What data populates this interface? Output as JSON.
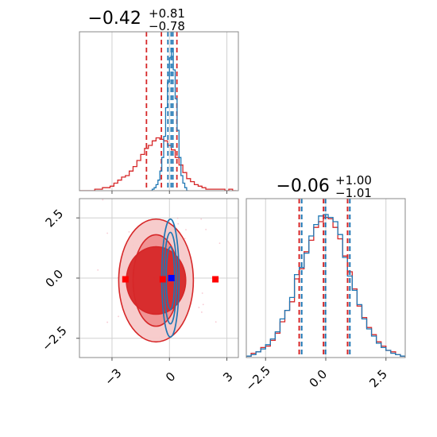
{
  "chart_data": [
    {
      "type": "histogram",
      "panel": "marginal-param-1",
      "title": {
        "median": "−0.42",
        "plus": "+0.81",
        "minus": "−0.78"
      },
      "xlim": [
        -4.7,
        3.6
      ],
      "xticks": [
        -3,
        0,
        3
      ],
      "tick_labels_shown": false,
      "grid": true,
      "series": [
        {
          "color": "#d62728",
          "bin_centers": [
            -4.6,
            -4.4,
            -4.2,
            -4.0,
            -3.8,
            -3.6,
            -3.4,
            -3.2,
            -3.0,
            -2.8,
            -2.6,
            -2.4,
            -2.2,
            -2.0,
            -1.8,
            -1.6,
            -1.4,
            -1.2,
            -1.0,
            -0.8,
            -0.6,
            -0.4,
            -0.2,
            0.0,
            0.2,
            0.4,
            0.6,
            0.8,
            1.0,
            1.2,
            1.4,
            1.6,
            1.8,
            2.0,
            2.2,
            2.4,
            2.6,
            2.8,
            3.0,
            3.2,
            3.4
          ],
          "heights": [
            0.0,
            0.0,
            0.0,
            0.0,
            0.01,
            0.01,
            0.02,
            0.02,
            0.03,
            0.05,
            0.07,
            0.09,
            0.1,
            0.13,
            0.16,
            0.2,
            0.24,
            0.28,
            0.3,
            0.33,
            0.35,
            0.34,
            0.33,
            0.3,
            0.27,
            0.22,
            0.17,
            0.12,
            0.08,
            0.06,
            0.04,
            0.03,
            0.02,
            0.01,
            0.01,
            0.01,
            0.01,
            0.01,
            0.0,
            0.01,
            0.0
          ],
          "quantile_lines": [
            -1.2,
            -0.42,
            0.39
          ]
        },
        {
          "color": "#1f77b4",
          "bin_centers": [
            -0.95,
            -0.85,
            -0.75,
            -0.65,
            -0.55,
            -0.45,
            -0.35,
            -0.25,
            -0.15,
            -0.05,
            0.05,
            0.15,
            0.25,
            0.35,
            0.45,
            0.55,
            0.65,
            0.75,
            0.85,
            0.95
          ],
          "heights": [
            0.0,
            0.01,
            0.02,
            0.04,
            0.07,
            0.13,
            0.22,
            0.36,
            0.55,
            0.72,
            0.88,
            0.94,
            0.8,
            0.61,
            0.4,
            0.22,
            0.1,
            0.05,
            0.02,
            0.0
          ],
          "quantile_lines": [
            -0.08,
            0.09,
            0.18
          ]
        }
      ]
    },
    {
      "type": "contour",
      "panel": "joint-2d",
      "xlim": [
        -4.7,
        3.6
      ],
      "ylim": [
        -3.3,
        3.3
      ],
      "xticks": [
        -3,
        0,
        3
      ],
      "xtick_labels": [
        "−3",
        "0",
        "3"
      ],
      "yticks": [
        2.5,
        0.0,
        -2.5
      ],
      "ytick_labels": [
        "2.5",
        "0.0",
        "−2.5"
      ],
      "grid": true,
      "red_contours": {
        "color": "#d62728",
        "center": [
          -0.7,
          -0.1
        ],
        "levels": [
          {
            "rx": 1.55,
            "ry": 1.4,
            "fill": "#f7c9c9"
          },
          {
            "rx": 1.2,
            "ry": 1.9,
            "fill": "#f08b8b"
          },
          {
            "rx": 1.95,
            "ry": 2.55,
            "fill": "#e35b5b"
          }
        ]
      },
      "blue_contours": {
        "color": "#1f77b4",
        "center": [
          0.05,
          0.0
        ],
        "levels": [
          {
            "rx": 0.22,
            "ry": 1.3
          },
          {
            "rx": 0.33,
            "ry": 1.9
          },
          {
            "rx": 0.45,
            "ry": 2.45
          }
        ]
      },
      "red_markers": [
        [
          -2.3,
          -0.05
        ],
        [
          -0.35,
          -0.05
        ],
        [
          2.4,
          -0.05
        ]
      ],
      "blue_markers": [
        [
          0.1,
          0.0
        ]
      ]
    },
    {
      "type": "histogram",
      "panel": "marginal-param-2",
      "title": {
        "median": "−0.06",
        "plus": "+1.00",
        "minus": "−1.01"
      },
      "xlim": [
        -3.3,
        3.3
      ],
      "xticks": [
        -2.5,
        0.0,
        2.5
      ],
      "xtick_labels": [
        "−2.5",
        "0.0",
        "2.5"
      ],
      "grid": true,
      "series": [
        {
          "color": "#d62728",
          "bin_centers": [
            -3.2,
            -3.0,
            -2.8,
            -2.6,
            -2.4,
            -2.2,
            -2.0,
            -1.8,
            -1.6,
            -1.4,
            -1.2,
            -1.0,
            -0.8,
            -0.6,
            -0.4,
            -0.2,
            0.0,
            0.2,
            0.4,
            0.6,
            0.8,
            1.0,
            1.2,
            1.4,
            1.6,
            1.8,
            2.0,
            2.2,
            2.4,
            2.6,
            2.8,
            3.0,
            3.2
          ],
          "heights": [
            0.01,
            0.03,
            0.04,
            0.07,
            0.08,
            0.12,
            0.17,
            0.25,
            0.33,
            0.39,
            0.55,
            0.62,
            0.74,
            0.82,
            0.91,
            0.95,
            0.98,
            0.97,
            0.91,
            0.83,
            0.71,
            0.6,
            0.48,
            0.36,
            0.28,
            0.21,
            0.16,
            0.11,
            0.08,
            0.05,
            0.04,
            0.02,
            0.01
          ],
          "quantile_lines": [
            -1.07,
            -0.06,
            0.94
          ]
        },
        {
          "color": "#1f77b4",
          "bin_centers": [
            -3.2,
            -3.0,
            -2.8,
            -2.6,
            -2.4,
            -2.2,
            -2.0,
            -1.8,
            -1.6,
            -1.4,
            -1.2,
            -1.0,
            -0.8,
            -0.6,
            -0.4,
            -0.2,
            0.0,
            0.2,
            0.4,
            0.6,
            0.8,
            1.0,
            1.2,
            1.4,
            1.6,
            1.8,
            2.0,
            2.2,
            2.4,
            2.6,
            2.8,
            3.0,
            3.2
          ],
          "heights": [
            0.01,
            0.02,
            0.04,
            0.06,
            0.09,
            0.13,
            0.18,
            0.27,
            0.33,
            0.42,
            0.58,
            0.63,
            0.73,
            0.85,
            0.93,
            0.99,
            1.0,
            0.98,
            0.95,
            0.86,
            0.7,
            0.57,
            0.47,
            0.37,
            0.27,
            0.2,
            0.15,
            0.1,
            0.07,
            0.05,
            0.03,
            0.02,
            0.01
          ],
          "quantile_lines": [
            -1.05,
            -0.06,
            0.95
          ]
        }
      ]
    }
  ]
}
